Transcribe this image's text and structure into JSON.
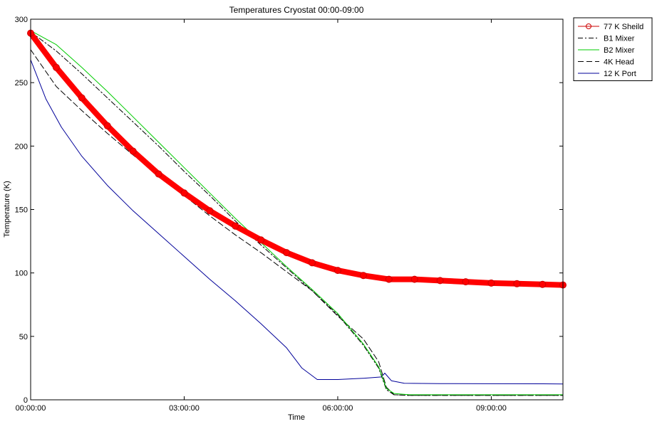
{
  "chart_data": {
    "type": "line",
    "title": "Temperatures Cryostat 00:00-09:00",
    "xlabel": "Time",
    "ylabel": "Temperature (K)",
    "x_unit": "hours",
    "xlim": [
      0,
      10.4
    ],
    "ylim": [
      0,
      300
    ],
    "x_tick_values": [
      0,
      3,
      6,
      9
    ],
    "x_tick_labels": [
      "00:00:00",
      "03:00:00",
      "06:00:00",
      "09:00:00"
    ],
    "y_ticks": [
      0,
      50,
      100,
      150,
      200,
      250,
      300
    ],
    "legend_position": "outside-top-right",
    "grid": false,
    "series": [
      {
        "name": "77 K Sheild",
        "color": "#ff0000",
        "style": "thick-marker",
        "x": [
          0,
          0.5,
          1,
          1.5,
          2,
          2.5,
          3,
          3.5,
          4,
          4.5,
          5,
          5.5,
          6,
          6.5,
          7,
          7.5,
          8,
          8.5,
          9,
          9.5,
          10,
          10.4
        ],
        "values": [
          289,
          262,
          238,
          216,
          196,
          178,
          163,
          149,
          137,
          126,
          116,
          108,
          102,
          98,
          95,
          95,
          94,
          93,
          92,
          91.5,
          91,
          90.5
        ]
      },
      {
        "name": "B1 Mixer",
        "color": "#000000",
        "style": "dash-dot",
        "x": [
          0,
          0.5,
          1,
          1.5,
          2,
          2.5,
          3,
          3.5,
          4,
          4.5,
          5,
          5.5,
          6,
          6.5,
          6.8,
          6.95,
          7.1,
          7.4,
          8,
          9,
          10,
          10.4
        ],
        "values": [
          290,
          275,
          257,
          238,
          219,
          200,
          180,
          161,
          141,
          122,
          104,
          86,
          67,
          43,
          25,
          8,
          4,
          3.5,
          3.5,
          3.5,
          3.5,
          3.5
        ]
      },
      {
        "name": "B2 Mixer",
        "color": "#00cc00",
        "style": "solid",
        "x": [
          0,
          0.5,
          1,
          1.5,
          2,
          2.5,
          3,
          3.5,
          4,
          4.5,
          5,
          5.5,
          6,
          6.5,
          6.8,
          6.95,
          7.1,
          7.4,
          8,
          9,
          10,
          10.4
        ],
        "values": [
          291,
          280,
          262,
          243,
          223,
          203,
          183,
          163,
          143,
          124,
          105,
          87,
          68,
          44,
          26,
          9,
          5,
          4,
          4,
          4,
          4,
          4
        ]
      },
      {
        "name": "4K Head",
        "color": "#000000",
        "style": "dashed",
        "x": [
          0,
          0.5,
          1,
          1.5,
          2,
          2.5,
          3,
          3.5,
          4,
          4.5,
          5,
          5.5,
          6,
          6.5,
          6.8,
          6.95,
          7.1,
          7.4,
          8,
          9,
          10,
          10.4
        ],
        "values": [
          276,
          247,
          228,
          210,
          193,
          177,
          161,
          145,
          130,
          116,
          101,
          86,
          66,
          48,
          30,
          10,
          4,
          3.5,
          3.5,
          3.5,
          3.5,
          3.5
        ]
      },
      {
        "name": "12 K Port",
        "color": "#000099",
        "style": "solid",
        "x": [
          0,
          0.3,
          0.6,
          1,
          1.5,
          2,
          2.5,
          3,
          3.5,
          4,
          4.5,
          5,
          5.3,
          5.6,
          6,
          6.5,
          6.85,
          6.92,
          7.05,
          7.3,
          8,
          9,
          10,
          10.4
        ],
        "values": [
          268,
          237,
          215,
          192,
          169,
          149,
          131,
          113,
          95,
          78,
          60,
          41,
          25,
          16,
          16,
          17,
          18,
          21,
          15,
          13,
          12.8,
          12.7,
          12.6,
          12.5
        ]
      }
    ]
  }
}
